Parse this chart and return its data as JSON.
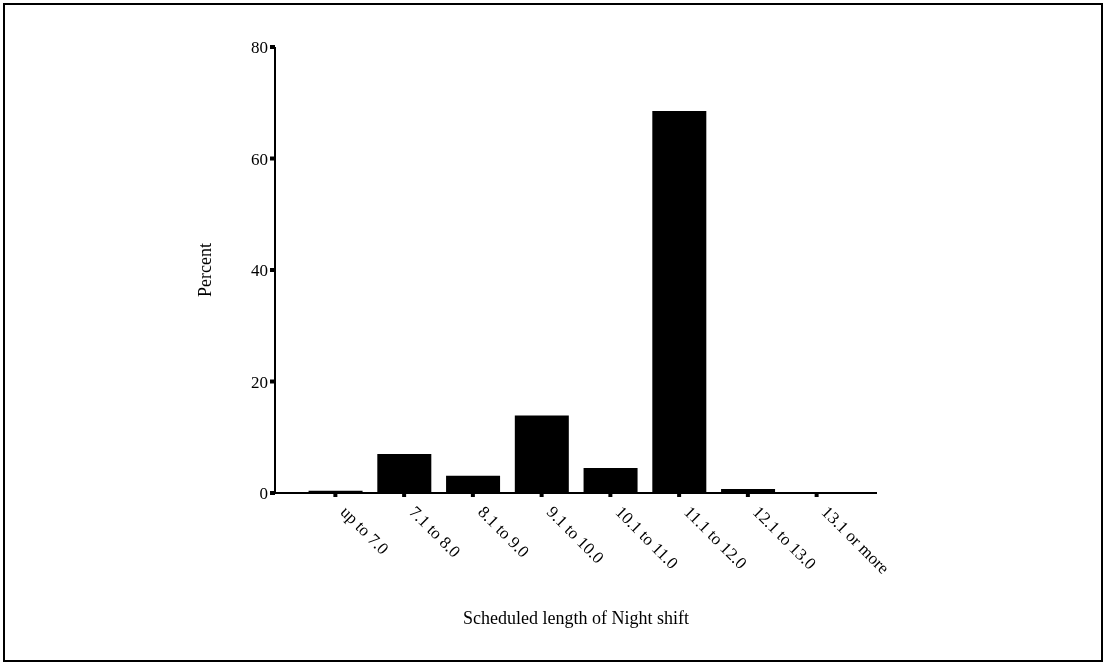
{
  "chart_data": {
    "type": "bar",
    "xlabel": "Scheduled length of Night shift",
    "ylabel": "Percent",
    "categories": [
      "up to 7.0",
      "7.1 to 8.0",
      "8.1 to 9.0",
      "9.1 to 10.0",
      "10.1 to 11.0",
      "11.1 to 12.0",
      "12.1 to 13.0",
      "13.1 or more"
    ],
    "values": [
      0.4,
      7.0,
      3.1,
      13.9,
      4.5,
      68.5,
      0.7,
      0
    ],
    "color": "#000000",
    "ylim": [
      0,
      80
    ],
    "yticks": [
      0,
      20,
      40,
      60,
      80
    ],
    "grid": false
  }
}
